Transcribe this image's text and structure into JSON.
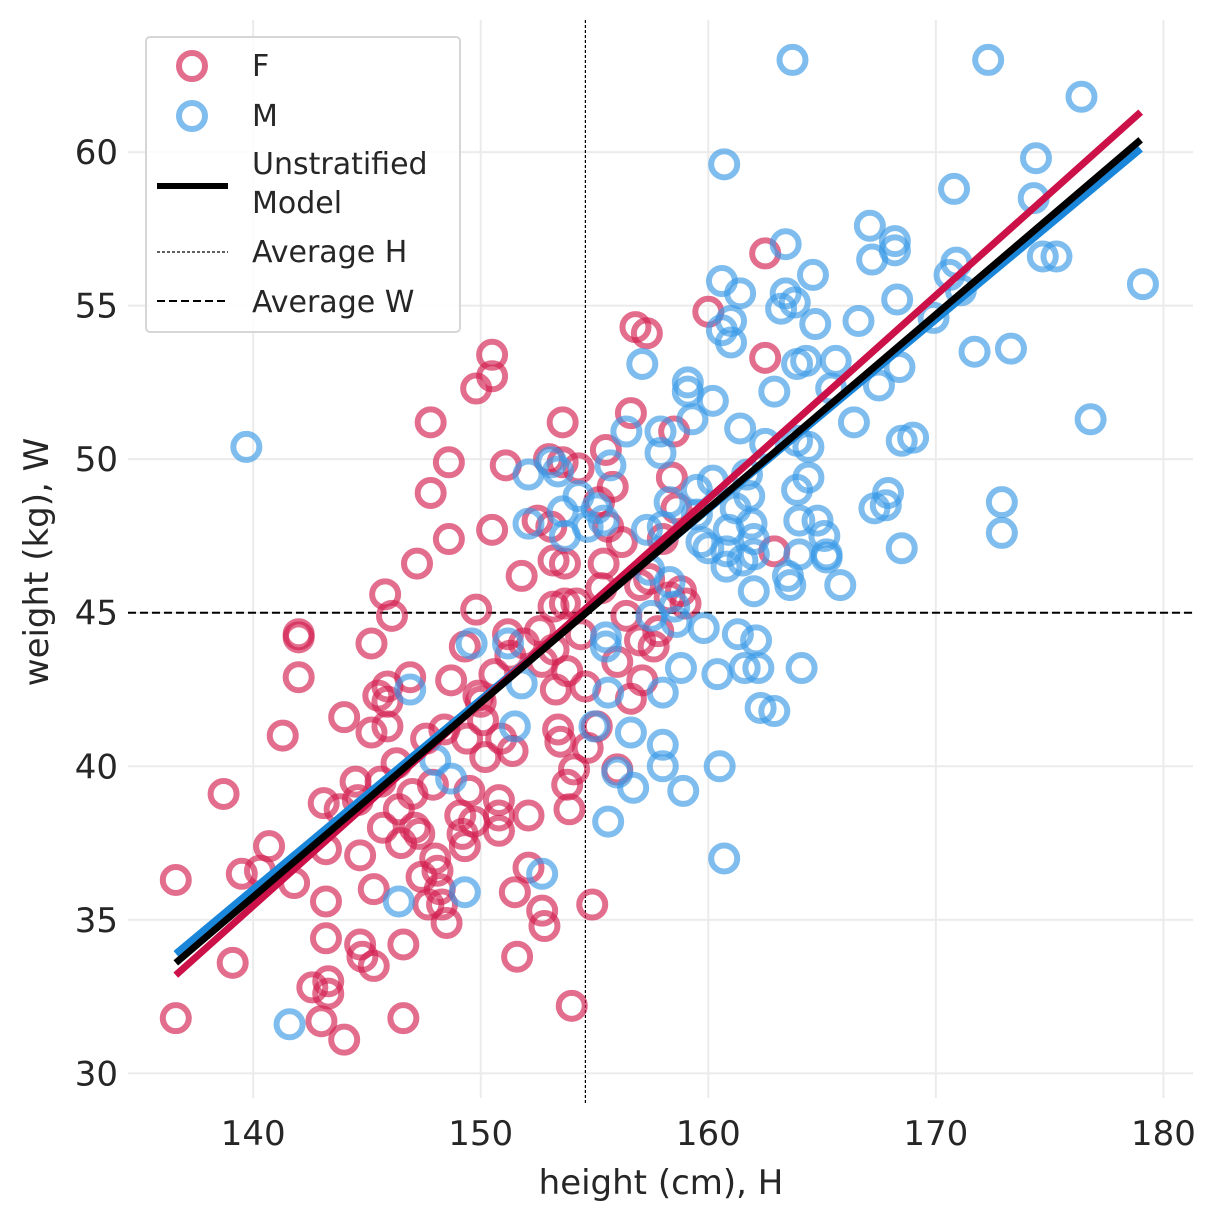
{
  "chart_data": {
    "type": "scatter",
    "xlabel": "height (cm), H",
    "ylabel": "weight (kg), W",
    "xlim": [
      134.5,
      181.3
    ],
    "ylim": [
      29.2,
      64.3
    ],
    "xticks": [
      140,
      150,
      160,
      170,
      180
    ],
    "yticks": [
      30,
      35,
      40,
      45,
      50,
      55,
      60
    ],
    "grid": true,
    "colors": {
      "F": "#d21e50",
      "M": "#3b9ae6",
      "F_line": "#cc1048",
      "M_line": "#1a86d9",
      "model": "#000000"
    },
    "series": [
      {
        "name": "F",
        "type": "scatter",
        "points": [
          [
            136.6,
            36.3
          ],
          [
            136.6,
            31.8
          ],
          [
            138.7,
            39.1
          ],
          [
            139.1,
            33.6
          ],
          [
            139.5,
            36.5
          ],
          [
            140.3,
            36.6
          ],
          [
            140.7,
            37.4
          ],
          [
            141.3,
            41.0
          ],
          [
            141.8,
            36.2
          ],
          [
            142.0,
            44.3
          ],
          [
            142.0,
            44.2
          ],
          [
            142.0,
            42.9
          ],
          [
            142.6,
            32.8
          ],
          [
            143.0,
            31.7
          ],
          [
            143.1,
            38.8
          ],
          [
            143.2,
            37.3
          ],
          [
            143.2,
            35.6
          ],
          [
            143.2,
            34.4
          ],
          [
            143.3,
            33.0
          ],
          [
            143.3,
            32.6
          ],
          [
            143.8,
            38.6
          ],
          [
            144.0,
            41.6
          ],
          [
            144.0,
            31.1
          ],
          [
            144.5,
            39.5
          ],
          [
            144.6,
            38.9
          ],
          [
            144.7,
            37.1
          ],
          [
            144.7,
            34.2
          ],
          [
            144.8,
            33.8
          ],
          [
            145.2,
            44.0
          ],
          [
            145.2,
            41.1
          ],
          [
            145.3,
            36.0
          ],
          [
            145.3,
            33.5
          ],
          [
            145.5,
            42.3
          ],
          [
            145.6,
            39.5
          ],
          [
            145.7,
            38.0
          ],
          [
            145.8,
            45.6
          ],
          [
            145.9,
            42.6
          ],
          [
            145.9,
            42.1
          ],
          [
            145.9,
            41.3
          ],
          [
            146.1,
            44.9
          ],
          [
            146.3,
            40.1
          ],
          [
            146.4,
            38.6
          ],
          [
            146.5,
            37.5
          ],
          [
            146.6,
            34.2
          ],
          [
            146.6,
            31.8
          ],
          [
            146.9,
            42.9
          ],
          [
            147.0,
            39.1
          ],
          [
            147.1,
            38.0
          ],
          [
            147.2,
            46.6
          ],
          [
            147.3,
            37.8
          ],
          [
            147.4,
            36.4
          ],
          [
            147.6,
            40.9
          ],
          [
            147.7,
            35.5
          ],
          [
            147.8,
            51.2
          ],
          [
            147.8,
            48.9
          ],
          [
            147.9,
            39.4
          ],
          [
            148.0,
            37.0
          ],
          [
            148.1,
            36.6
          ],
          [
            148.2,
            36.0
          ],
          [
            148.3,
            35.5
          ],
          [
            148.4,
            41.2
          ],
          [
            148.5,
            34.9
          ],
          [
            148.6,
            49.9
          ],
          [
            148.6,
            47.4
          ],
          [
            148.7,
            42.8
          ],
          [
            149.1,
            38.4
          ],
          [
            149.2,
            37.8
          ],
          [
            149.3,
            37.4
          ],
          [
            149.3,
            43.9
          ],
          [
            149.4,
            40.9
          ],
          [
            149.5,
            39.2
          ],
          [
            149.7,
            38.2
          ],
          [
            149.8,
            52.3
          ],
          [
            149.8,
            45.1
          ],
          [
            149.9,
            42.3
          ],
          [
            150.0,
            42.1
          ],
          [
            150.1,
            41.5
          ],
          [
            150.2,
            40.3
          ],
          [
            150.5,
            53.4
          ],
          [
            150.5,
            52.7
          ],
          [
            150.5,
            47.7
          ],
          [
            150.6,
            43.0
          ],
          [
            150.8,
            38.9
          ],
          [
            150.8,
            38.4
          ],
          [
            150.8,
            37.9
          ],
          [
            150.9,
            40.9
          ],
          [
            151.1,
            49.8
          ],
          [
            151.2,
            44.3
          ],
          [
            151.3,
            43.6
          ],
          [
            151.4,
            40.5
          ],
          [
            151.5,
            35.9
          ],
          [
            151.6,
            33.8
          ],
          [
            151.8,
            46.2
          ],
          [
            151.9,
            44.0
          ],
          [
            152.1,
            38.4
          ],
          [
            152.1,
            36.7
          ],
          [
            152.5,
            48.0
          ],
          [
            152.6,
            44.4
          ],
          [
            152.7,
            43.4
          ],
          [
            152.7,
            35.3
          ],
          [
            152.8,
            34.8
          ],
          [
            153.0,
            50.0
          ],
          [
            153.1,
            47.8
          ],
          [
            153.2,
            46.7
          ],
          [
            153.2,
            45.2
          ],
          [
            153.2,
            43.8
          ],
          [
            153.3,
            42.5
          ],
          [
            153.4,
            41.2
          ],
          [
            153.5,
            40.8
          ],
          [
            153.6,
            51.2
          ],
          [
            153.6,
            49.9
          ],
          [
            153.7,
            46.6
          ],
          [
            153.7,
            45.3
          ],
          [
            153.8,
            43.1
          ],
          [
            153.8,
            39.4
          ],
          [
            153.9,
            38.6
          ],
          [
            154.0,
            32.2
          ],
          [
            154.1,
            39.9
          ],
          [
            154.2,
            45.3
          ],
          [
            154.3,
            49.7
          ],
          [
            154.4,
            44.3
          ],
          [
            154.6,
            42.6
          ],
          [
            154.7,
            40.6
          ],
          [
            154.9,
            35.5
          ],
          [
            155.1,
            41.3
          ],
          [
            155.2,
            48.6
          ],
          [
            155.3,
            45.8
          ],
          [
            155.4,
            46.6
          ],
          [
            155.5,
            50.3
          ],
          [
            155.6,
            47.8
          ],
          [
            155.8,
            49.1
          ],
          [
            156.0,
            43.4
          ],
          [
            156.0,
            39.9
          ],
          [
            156.2,
            47.3
          ],
          [
            156.4,
            44.9
          ],
          [
            156.6,
            51.5
          ],
          [
            156.6,
            42.2
          ],
          [
            156.8,
            54.3
          ],
          [
            157.0,
            45.9
          ],
          [
            157.0,
            44.1
          ],
          [
            157.1,
            42.8
          ],
          [
            157.3,
            54.1
          ],
          [
            157.4,
            46.1
          ],
          [
            157.6,
            43.9
          ],
          [
            157.8,
            44.4
          ],
          [
            158.0,
            47.4
          ],
          [
            158.3,
            45.5
          ],
          [
            158.4,
            49.4
          ],
          [
            158.5,
            50.9
          ],
          [
            158.6,
            48.4
          ],
          [
            158.8,
            45.7
          ],
          [
            159.0,
            45.3
          ],
          [
            160.0,
            54.8
          ],
          [
            162.5,
            56.7
          ],
          [
            162.5,
            53.3
          ],
          [
            162.9,
            47.0
          ]
        ]
      },
      {
        "name": "M",
        "type": "scatter",
        "points": [
          [
            139.7,
            50.4
          ],
          [
            141.6,
            31.6
          ],
          [
            146.4,
            35.6
          ],
          [
            146.9,
            42.5
          ],
          [
            148.0,
            40.2
          ],
          [
            148.7,
            39.6
          ],
          [
            149.3,
            35.9
          ],
          [
            149.6,
            44.0
          ],
          [
            151.2,
            44.0
          ],
          [
            151.5,
            41.3
          ],
          [
            151.8,
            42.7
          ],
          [
            152.1,
            49.5
          ],
          [
            152.1,
            47.9
          ],
          [
            152.7,
            36.5
          ],
          [
            153.1,
            49.9
          ],
          [
            153.4,
            49.6
          ],
          [
            153.6,
            48.3
          ],
          [
            153.7,
            47.5
          ],
          [
            154.3,
            48.8
          ],
          [
            154.7,
            47.8
          ],
          [
            155.0,
            41.3
          ],
          [
            155.1,
            48.4
          ],
          [
            155.4,
            48.0
          ],
          [
            155.5,
            44.2
          ],
          [
            155.5,
            43.9
          ],
          [
            155.6,
            42.4
          ],
          [
            155.6,
            38.2
          ],
          [
            155.7,
            49.8
          ],
          [
            156.0,
            39.8
          ],
          [
            156.4,
            50.9
          ],
          [
            156.6,
            41.1
          ],
          [
            156.7,
            39.3
          ],
          [
            157.1,
            53.1
          ],
          [
            157.3,
            47.7
          ],
          [
            157.4,
            46.4
          ],
          [
            157.5,
            44.9
          ],
          [
            157.9,
            50.9
          ],
          [
            157.9,
            50.2
          ],
          [
            158.0,
            47.8
          ],
          [
            158.0,
            42.4
          ],
          [
            158.0,
            40.7
          ],
          [
            158.0,
            40.0
          ],
          [
            158.3,
            48.6
          ],
          [
            158.3,
            46.0
          ],
          [
            158.5,
            45.2
          ],
          [
            158.6,
            44.7
          ],
          [
            158.8,
            43.2
          ],
          [
            158.9,
            39.2
          ],
          [
            159.1,
            52.5
          ],
          [
            159.1,
            52.2
          ],
          [
            159.3,
            51.3
          ],
          [
            159.5,
            49.0
          ],
          [
            159.5,
            48.2
          ],
          [
            159.7,
            47.3
          ],
          [
            159.8,
            44.5
          ],
          [
            160.0,
            47.1
          ],
          [
            160.2,
            51.9
          ],
          [
            160.2,
            49.3
          ],
          [
            160.4,
            43.0
          ],
          [
            160.5,
            40.0
          ],
          [
            160.6,
            55.8
          ],
          [
            160.6,
            54.2
          ],
          [
            160.7,
            59.6
          ],
          [
            160.7,
            37.0
          ],
          [
            160.8,
            47.0
          ],
          [
            160.8,
            46.5
          ],
          [
            160.9,
            47.7
          ],
          [
            161.0,
            54.5
          ],
          [
            161.0,
            53.8
          ],
          [
            161.2,
            48.4
          ],
          [
            161.3,
            44.3
          ],
          [
            161.4,
            55.4
          ],
          [
            161.4,
            51.0
          ],
          [
            161.5,
            46.7
          ],
          [
            161.6,
            43.2
          ],
          [
            161.7,
            49.5
          ],
          [
            161.8,
            48.8
          ],
          [
            161.9,
            47.9
          ],
          [
            162.0,
            47.4
          ],
          [
            162.0,
            46.9
          ],
          [
            162.0,
            45.7
          ],
          [
            162.1,
            44.1
          ],
          [
            162.2,
            43.2
          ],
          [
            162.3,
            41.9
          ],
          [
            162.5,
            50.5
          ],
          [
            162.9,
            52.2
          ],
          [
            162.9,
            41.8
          ],
          [
            163.2,
            54.9
          ],
          [
            163.4,
            55.4
          ],
          [
            163.4,
            57.0
          ],
          [
            163.5,
            46.2
          ],
          [
            163.6,
            45.9
          ],
          [
            163.8,
            55.1
          ],
          [
            163.9,
            53.1
          ],
          [
            163.9,
            50.6
          ],
          [
            163.9,
            49.0
          ],
          [
            164.0,
            48.0
          ],
          [
            164.0,
            46.9
          ],
          [
            164.1,
            43.2
          ],
          [
            164.3,
            53.2
          ],
          [
            164.4,
            49.4
          ],
          [
            164.4,
            50.4
          ],
          [
            164.6,
            56.0
          ],
          [
            164.7,
            54.4
          ],
          [
            164.8,
            48.0
          ],
          [
            165.1,
            47.5
          ],
          [
            165.2,
            46.9
          ],
          [
            165.2,
            46.8
          ],
          [
            165.4,
            52.3
          ],
          [
            165.6,
            53.2
          ],
          [
            165.8,
            45.9
          ],
          [
            166.4,
            51.2
          ],
          [
            166.6,
            54.5
          ],
          [
            167.1,
            57.6
          ],
          [
            167.2,
            56.5
          ],
          [
            167.3,
            48.4
          ],
          [
            167.5,
            52.4
          ],
          [
            167.8,
            48.5
          ],
          [
            167.9,
            48.9
          ],
          [
            168.2,
            57.1
          ],
          [
            168.2,
            56.8
          ],
          [
            168.3,
            55.2
          ],
          [
            168.4,
            53.0
          ],
          [
            168.5,
            50.6
          ],
          [
            168.5,
            47.1
          ],
          [
            169.0,
            50.7
          ],
          [
            169.9,
            54.6
          ],
          [
            170.6,
            56.0
          ],
          [
            170.8,
            58.8
          ],
          [
            170.9,
            56.4
          ],
          [
            171.1,
            55.5
          ],
          [
            171.7,
            53.5
          ],
          [
            172.3,
            63.0
          ],
          [
            172.9,
            47.6
          ],
          [
            172.9,
            48.6
          ],
          [
            173.3,
            53.6
          ],
          [
            174.3,
            58.5
          ],
          [
            174.4,
            59.8
          ],
          [
            174.7,
            56.6
          ],
          [
            175.3,
            56.6
          ],
          [
            176.4,
            61.8
          ],
          [
            176.8,
            51.3
          ],
          [
            179.1,
            55.7
          ],
          [
            163.7,
            63.0
          ]
        ]
      },
      {
        "name": "Unstratified Model",
        "type": "line",
        "x": [
          136.6,
          179.0
        ],
        "y": [
          33.6,
          60.4
        ]
      },
      {
        "name": "F fit",
        "type": "line",
        "x": [
          136.6,
          179.0
        ],
        "y": [
          33.2,
          61.3
        ]
      },
      {
        "name": "M fit",
        "type": "line",
        "x": [
          136.6,
          179.0
        ],
        "y": [
          33.9,
          60.1
        ]
      },
      {
        "name": "Average H",
        "type": "vline",
        "x": 154.6
      },
      {
        "name": "Average W",
        "type": "hline",
        "y": 45.0
      }
    ],
    "legend": {
      "placement": "top-left",
      "entries": [
        "F",
        "M",
        "Unstratified\nModel",
        "Average H",
        "Average W"
      ]
    }
  }
}
